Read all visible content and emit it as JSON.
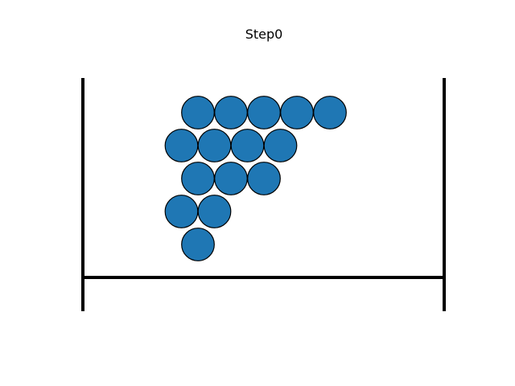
{
  "title": "Step0",
  "colors": {
    "ball_fill": "#1f77b4",
    "ball_stroke": "#000000",
    "wall": "#000000"
  },
  "balls_per_row": [
    5,
    4,
    3,
    2,
    1
  ]
}
